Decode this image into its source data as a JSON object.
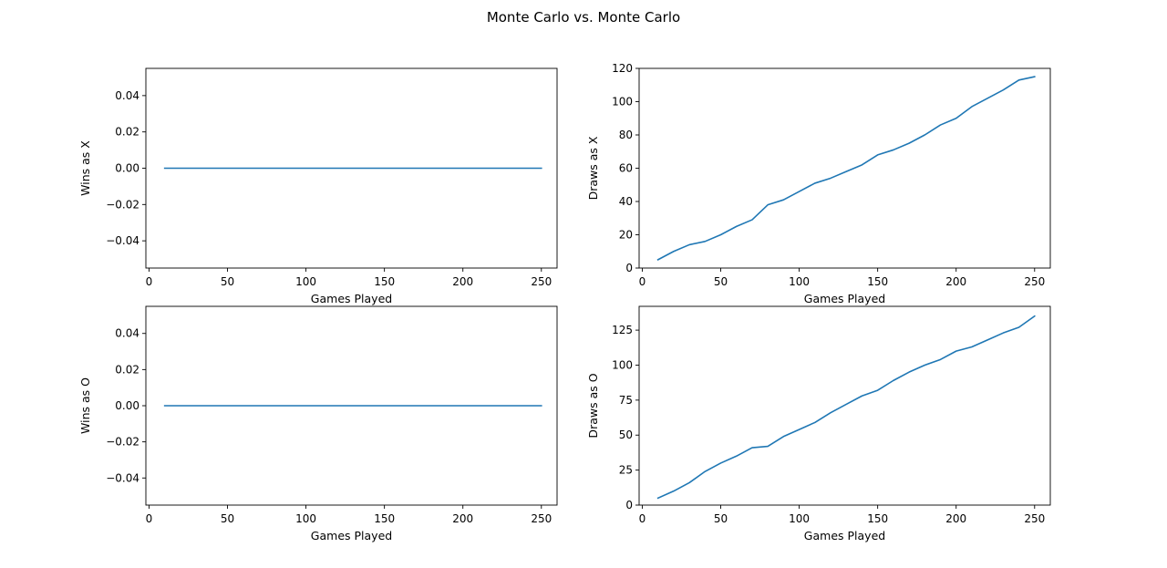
{
  "title": "Monte Carlo vs. Monte Carlo",
  "chart_data": [
    {
      "type": "line",
      "xlabel": "Games Played",
      "ylabel": "Wins as X",
      "xlim": [
        -2,
        260
      ],
      "ylim": [
        -0.055,
        0.055
      ],
      "xticks": [
        0,
        50,
        100,
        150,
        200,
        250
      ],
      "yticks": [
        -0.04,
        -0.02,
        0.0,
        0.02,
        0.04
      ],
      "ytick_labels": [
        "−0.04",
        "−0.02",
        "0.00",
        "0.02",
        "0.04"
      ],
      "xtick_labels": [
        "0",
        "50",
        "100",
        "150",
        "200",
        "250"
      ],
      "color": "#1f77b4",
      "grid": false,
      "x": [
        10,
        20,
        30,
        40,
        50,
        60,
        70,
        80,
        90,
        100,
        110,
        120,
        130,
        140,
        150,
        160,
        170,
        180,
        190,
        200,
        210,
        220,
        230,
        240,
        250
      ],
      "y": [
        0,
        0,
        0,
        0,
        0,
        0,
        0,
        0,
        0,
        0,
        0,
        0,
        0,
        0,
        0,
        0,
        0,
        0,
        0,
        0,
        0,
        0,
        0,
        0,
        0
      ]
    },
    {
      "type": "line",
      "xlabel": "Games Played",
      "ylabel": "Draws as X",
      "xlim": [
        -2,
        260
      ],
      "ylim": [
        0,
        120
      ],
      "xticks": [
        0,
        50,
        100,
        150,
        200,
        250
      ],
      "yticks": [
        0,
        20,
        40,
        60,
        80,
        100,
        120
      ],
      "ytick_labels": [
        "0",
        "20",
        "40",
        "60",
        "80",
        "100",
        "120"
      ],
      "xtick_labels": [
        "0",
        "50",
        "100",
        "150",
        "200",
        "250"
      ],
      "color": "#1f77b4",
      "grid": false,
      "x": [
        10,
        20,
        30,
        40,
        50,
        60,
        70,
        80,
        90,
        100,
        110,
        120,
        130,
        140,
        150,
        160,
        170,
        180,
        190,
        200,
        210,
        220,
        230,
        240,
        250
      ],
      "y": [
        5,
        10,
        14,
        16,
        20,
        25,
        29,
        38,
        41,
        46,
        51,
        54,
        58,
        62,
        68,
        71,
        75,
        80,
        86,
        90,
        97,
        102,
        107,
        113,
        115
      ]
    },
    {
      "type": "line",
      "xlabel": "Games Played",
      "ylabel": "Wins as O",
      "xlim": [
        -2,
        260
      ],
      "ylim": [
        -0.055,
        0.055
      ],
      "xticks": [
        0,
        50,
        100,
        150,
        200,
        250
      ],
      "yticks": [
        -0.04,
        -0.02,
        0.0,
        0.02,
        0.04
      ],
      "ytick_labels": [
        "−0.04",
        "−0.02",
        "0.00",
        "0.02",
        "0.04"
      ],
      "xtick_labels": [
        "0",
        "50",
        "100",
        "150",
        "200",
        "250"
      ],
      "color": "#1f77b4",
      "grid": false,
      "x": [
        10,
        20,
        30,
        40,
        50,
        60,
        70,
        80,
        90,
        100,
        110,
        120,
        130,
        140,
        150,
        160,
        170,
        180,
        190,
        200,
        210,
        220,
        230,
        240,
        250
      ],
      "y": [
        0,
        0,
        0,
        0,
        0,
        0,
        0,
        0,
        0,
        0,
        0,
        0,
        0,
        0,
        0,
        0,
        0,
        0,
        0,
        0,
        0,
        0,
        0,
        0,
        0
      ]
    },
    {
      "type": "line",
      "xlabel": "Games Played",
      "ylabel": "Draws as O",
      "xlim": [
        -2,
        260
      ],
      "ylim": [
        0,
        142
      ],
      "xticks": [
        0,
        50,
        100,
        150,
        200,
        250
      ],
      "yticks": [
        0,
        25,
        50,
        75,
        100,
        125
      ],
      "ytick_labels": [
        "0",
        "25",
        "50",
        "75",
        "100",
        "125"
      ],
      "xtick_labels": [
        "0",
        "50",
        "100",
        "150",
        "200",
        "250"
      ],
      "color": "#1f77b4",
      "grid": false,
      "x": [
        10,
        20,
        30,
        40,
        50,
        60,
        70,
        80,
        90,
        100,
        110,
        120,
        130,
        140,
        150,
        160,
        170,
        180,
        190,
        200,
        210,
        220,
        230,
        240,
        250
      ],
      "y": [
        5,
        10,
        16,
        24,
        30,
        35,
        41,
        42,
        49,
        54,
        59,
        66,
        72,
        78,
        82,
        89,
        95,
        100,
        104,
        110,
        113,
        118,
        123,
        127,
        135
      ]
    }
  ]
}
